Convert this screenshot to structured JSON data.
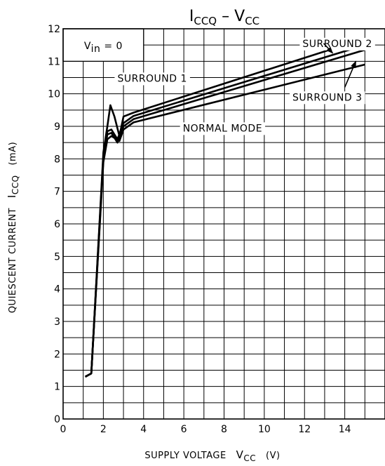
{
  "chart_data": {
    "type": "line",
    "title": {
      "main_a": "I",
      "sub_a": "CCQ",
      "sep": " – ",
      "main_b": "V",
      "sub_b": "CC"
    },
    "xlabel": {
      "text": "SUPPLY VOLTAGE",
      "sym_main": "V",
      "sym_sub": "CC",
      "unit": "(V)"
    },
    "ylabel": {
      "text": "QUIESCENT CURRENT",
      "sym_main": "I",
      "sym_sub": "CCQ",
      "unit": "(mA)"
    },
    "xlim": [
      0,
      16
    ],
    "ylim": [
      0,
      12
    ],
    "x_ticks": [
      0,
      2,
      4,
      6,
      8,
      10,
      12,
      14
    ],
    "y_ticks": [
      0,
      1,
      2,
      3,
      4,
      5,
      6,
      7,
      8,
      9,
      10,
      11,
      12
    ],
    "x_minor_step": 1,
    "y_minor_step": 0.5,
    "grid": true,
    "condition": {
      "main": "V",
      "sub": "in",
      "rest": " = 0"
    },
    "series": [
      {
        "name": "SURROUND 2",
        "points": [
          [
            1.1,
            1.3
          ],
          [
            1.4,
            1.4
          ],
          [
            2.0,
            8.2
          ],
          [
            2.2,
            9.0
          ],
          [
            2.35,
            9.65
          ],
          [
            2.55,
            9.3
          ],
          [
            2.8,
            8.7
          ],
          [
            3.0,
            9.3
          ],
          [
            3.5,
            9.42
          ],
          [
            15.0,
            11.7
          ]
        ]
      },
      {
        "name": "SURROUND 1",
        "points": [
          [
            1.1,
            1.3
          ],
          [
            1.4,
            1.4
          ],
          [
            2.0,
            8.1
          ],
          [
            2.2,
            8.85
          ],
          [
            2.4,
            8.9
          ],
          [
            2.7,
            8.6
          ],
          [
            3.0,
            9.1
          ],
          [
            3.5,
            9.32
          ],
          [
            15.0,
            11.5
          ]
        ]
      },
      {
        "name": "SURROUND 3",
        "points": [
          [
            1.1,
            1.3
          ],
          [
            1.4,
            1.4
          ],
          [
            2.0,
            8.0
          ],
          [
            2.2,
            8.75
          ],
          [
            2.4,
            8.8
          ],
          [
            2.7,
            8.5
          ],
          [
            3.0,
            9.0
          ],
          [
            3.5,
            9.22
          ],
          [
            15.0,
            11.35
          ]
        ]
      },
      {
        "name": "NORMAL MODE",
        "points": [
          [
            1.1,
            1.3
          ],
          [
            1.4,
            1.4
          ],
          [
            2.0,
            7.9
          ],
          [
            2.2,
            8.6
          ],
          [
            2.4,
            8.7
          ],
          [
            2.8,
            8.55
          ],
          [
            3.0,
            8.9
          ],
          [
            3.5,
            9.12
          ],
          [
            15.0,
            10.9
          ]
        ]
      }
    ],
    "annotations": [
      {
        "text": "SURROUND 2",
        "anchor": [
          11.9,
          11.55
        ],
        "arrow": true,
        "arrow_from": [
          12.95,
          11.55
        ],
        "arrow_to": [
          13.4,
          11.25
        ]
      },
      {
        "text": "SURROUND 1",
        "anchor": [
          2.7,
          10.48
        ],
        "arrow": false
      },
      {
        "text": "SURROUND 3",
        "anchor": [
          11.4,
          9.9
        ],
        "arrow": true,
        "arrow_from": [
          14.0,
          10.2
        ],
        "arrow_to": [
          14.55,
          11.0
        ]
      },
      {
        "text": "NORMAL MODE",
        "anchor": [
          5.95,
          8.95
        ],
        "arrow": false
      }
    ]
  }
}
